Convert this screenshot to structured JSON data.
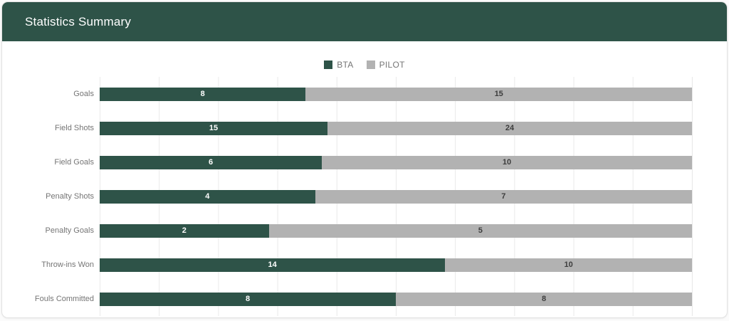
{
  "page": {
    "title": "Statistics Summary"
  },
  "theme": {
    "header_bg": "#2E5348",
    "card_bg": "#ffffff",
    "card_border": "#e2e2e2",
    "gridline": "#e9e9e9",
    "category_label_color": "#757575",
    "legend_text_color": "#757575"
  },
  "chart_data": {
    "type": "bar",
    "variant": "horizontal-stacked-100-percent",
    "title": "Statistics Summary",
    "xlabel": "",
    "ylabel": "",
    "grid": true,
    "gridline_interval_percent": 10,
    "legend_position": "top-center",
    "value_labels": true,
    "categories": [
      "Goals",
      "Field Shots",
      "Field Goals",
      "Penalty Shots",
      "Penalty Goals",
      "Throw-ins Won",
      "Fouls Committed"
    ],
    "series": [
      {
        "name": "BTA",
        "color": "#2E5348",
        "label_color": "#ffffff",
        "values": [
          8,
          15,
          6,
          4,
          2,
          14,
          8
        ]
      },
      {
        "name": "PILOT",
        "color": "#B2B2B2",
        "label_color": "#3d3d3d",
        "values": [
          15,
          24,
          10,
          7,
          5,
          10,
          8
        ]
      }
    ]
  }
}
